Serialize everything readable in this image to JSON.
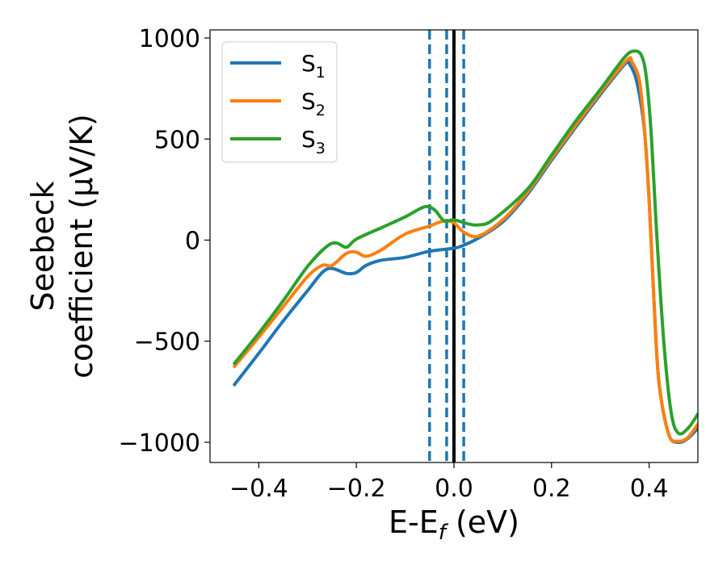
{
  "chart_data": {
    "type": "line",
    "xlabel": "E-E",
    "xlabel_sub": "f",
    "xlabel_unit": " (eV)",
    "ylabel_line1": "Seebeck",
    "ylabel_line2": "coefficient  (μV/K)",
    "xlim": [
      -0.5,
      0.5
    ],
    "ylim": [
      -1100,
      1040
    ],
    "xticks": [
      -0.4,
      -0.2,
      0.0,
      0.2,
      0.4
    ],
    "xtick_labels": [
      "−0.4",
      "−0.2",
      "0.0",
      "0.2",
      "0.4"
    ],
    "yticks": [
      -1000,
      -500,
      0,
      500,
      1000
    ],
    "ytick_labels": [
      "−1000",
      "−500",
      "0",
      "500",
      "1000"
    ],
    "grid": false,
    "legend_position": "top-left",
    "vlines": [
      {
        "x": -0.05,
        "style": "dashed",
        "color": "#1f77b4"
      },
      {
        "x": -0.015,
        "style": "dashed",
        "color": "#1f77b4"
      },
      {
        "x": 0.02,
        "style": "dashed",
        "color": "#1f77b4"
      },
      {
        "x": 0.0,
        "style": "solid",
        "color": "#000000"
      }
    ],
    "series": [
      {
        "name": "S",
        "sub": "1",
        "color": "#1f77b4",
        "points": [
          [
            -0.45,
            -715
          ],
          [
            -0.4,
            -560
          ],
          [
            -0.35,
            -400
          ],
          [
            -0.3,
            -250
          ],
          [
            -0.27,
            -160
          ],
          [
            -0.25,
            -140
          ],
          [
            -0.22,
            -165
          ],
          [
            -0.2,
            -160
          ],
          [
            -0.18,
            -125
          ],
          [
            -0.15,
            -100
          ],
          [
            -0.1,
            -85
          ],
          [
            -0.05,
            -55
          ],
          [
            0.0,
            -40
          ],
          [
            0.02,
            -25
          ],
          [
            0.05,
            10
          ],
          [
            0.1,
            90
          ],
          [
            0.15,
            225
          ],
          [
            0.2,
            395
          ],
          [
            0.25,
            560
          ],
          [
            0.3,
            720
          ],
          [
            0.35,
            870
          ],
          [
            0.36,
            870
          ],
          [
            0.375,
            780
          ],
          [
            0.39,
            550
          ],
          [
            0.4,
            200
          ],
          [
            0.41,
            -300
          ],
          [
            0.42,
            -700
          ],
          [
            0.44,
            -960
          ],
          [
            0.46,
            -1000
          ],
          [
            0.48,
            -980
          ],
          [
            0.5,
            -930
          ]
        ]
      },
      {
        "name": "S",
        "sub": "2",
        "color": "#ff7f0e",
        "points": [
          [
            -0.45,
            -625
          ],
          [
            -0.4,
            -480
          ],
          [
            -0.35,
            -330
          ],
          [
            -0.3,
            -180
          ],
          [
            -0.27,
            -125
          ],
          [
            -0.25,
            -125
          ],
          [
            -0.22,
            -65
          ],
          [
            -0.2,
            -60
          ],
          [
            -0.18,
            -80
          ],
          [
            -0.15,
            -50
          ],
          [
            -0.1,
            30
          ],
          [
            -0.05,
            70
          ],
          [
            -0.02,
            95
          ],
          [
            0.0,
            85
          ],
          [
            0.02,
            40
          ],
          [
            0.05,
            20
          ],
          [
            0.1,
            100
          ],
          [
            0.15,
            235
          ],
          [
            0.2,
            405
          ],
          [
            0.25,
            570
          ],
          [
            0.3,
            730
          ],
          [
            0.355,
            890
          ],
          [
            0.365,
            880
          ],
          [
            0.38,
            790
          ],
          [
            0.39,
            560
          ],
          [
            0.4,
            200
          ],
          [
            0.41,
            -300
          ],
          [
            0.42,
            -700
          ],
          [
            0.44,
            -960
          ],
          [
            0.46,
            -995
          ],
          [
            0.48,
            -975
          ],
          [
            0.5,
            -910
          ]
        ]
      },
      {
        "name": "S",
        "sub": "3",
        "color": "#2ca02c",
        "points": [
          [
            -0.45,
            -610
          ],
          [
            -0.4,
            -460
          ],
          [
            -0.35,
            -300
          ],
          [
            -0.3,
            -130
          ],
          [
            -0.26,
            -30
          ],
          [
            -0.24,
            -15
          ],
          [
            -0.22,
            -35
          ],
          [
            -0.2,
            5
          ],
          [
            -0.15,
            60
          ],
          [
            -0.1,
            115
          ],
          [
            -0.06,
            165
          ],
          [
            -0.04,
            150
          ],
          [
            -0.02,
            95
          ],
          [
            0.0,
            100
          ],
          [
            0.03,
            80
          ],
          [
            0.05,
            75
          ],
          [
            0.08,
            100
          ],
          [
            0.15,
            250
          ],
          [
            0.2,
            420
          ],
          [
            0.25,
            590
          ],
          [
            0.3,
            745
          ],
          [
            0.35,
            905
          ],
          [
            0.37,
            935
          ],
          [
            0.385,
            910
          ],
          [
            0.395,
            790
          ],
          [
            0.405,
            500
          ],
          [
            0.415,
            50
          ],
          [
            0.43,
            -500
          ],
          [
            0.445,
            -850
          ],
          [
            0.46,
            -955
          ],
          [
            0.48,
            -930
          ],
          [
            0.5,
            -860
          ]
        ]
      }
    ]
  }
}
